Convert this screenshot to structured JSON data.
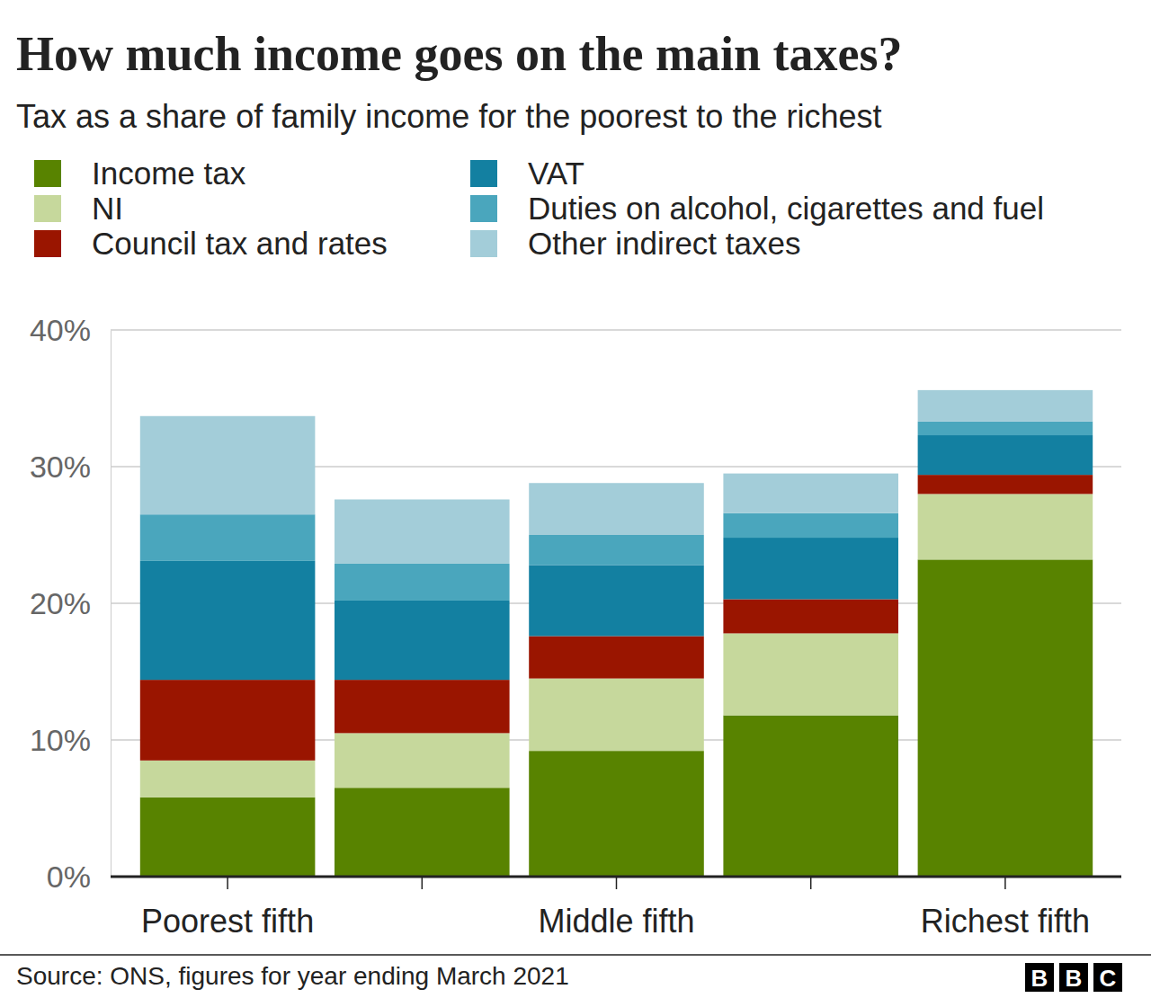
{
  "chart_data": {
    "type": "bar",
    "stacked": true,
    "title": "How much income goes on the main taxes?",
    "subtitle": "Tax as a share of family income for the poorest to the richest",
    "categories": [
      "Poorest fifth",
      null,
      "Middle fifth",
      null,
      "Richest fifth"
    ],
    "series": [
      {
        "name": "Income tax",
        "color": "#588300",
        "values": [
          5.8,
          6.5,
          9.2,
          11.8,
          23.2
        ]
      },
      {
        "name": "NI",
        "color": "#c6d89c",
        "values": [
          2.7,
          4.0,
          5.3,
          6.0,
          4.8
        ]
      },
      {
        "name": "Council tax and rates",
        "color": "#9a1500",
        "values": [
          5.9,
          3.9,
          3.1,
          2.5,
          1.4
        ]
      },
      {
        "name": "VAT",
        "color": "#1380a1",
        "values": [
          8.7,
          5.8,
          5.2,
          4.5,
          2.9
        ]
      },
      {
        "name": "Duties on alcohol, cigarettes and fuel",
        "color": "#4aa6bd",
        "values": [
          3.4,
          2.7,
          2.2,
          1.8,
          1.0
        ]
      },
      {
        "name": "Other indirect taxes",
        "color": "#a3cdd9",
        "values": [
          7.2,
          4.7,
          3.8,
          2.9,
          2.3
        ]
      }
    ],
    "ylim": [
      0,
      40
    ],
    "yticks": [
      {
        "value": 0,
        "label": "0%"
      },
      {
        "value": 10,
        "label": "10%"
      },
      {
        "value": 20,
        "label": "20%"
      },
      {
        "value": 30,
        "label": "30%"
      },
      {
        "value": 40,
        "label": "40%"
      }
    ],
    "grid": true,
    "legend": "top",
    "source": "Source: ONS, figures for year ending March 2021",
    "logo": [
      "B",
      "B",
      "C"
    ]
  }
}
